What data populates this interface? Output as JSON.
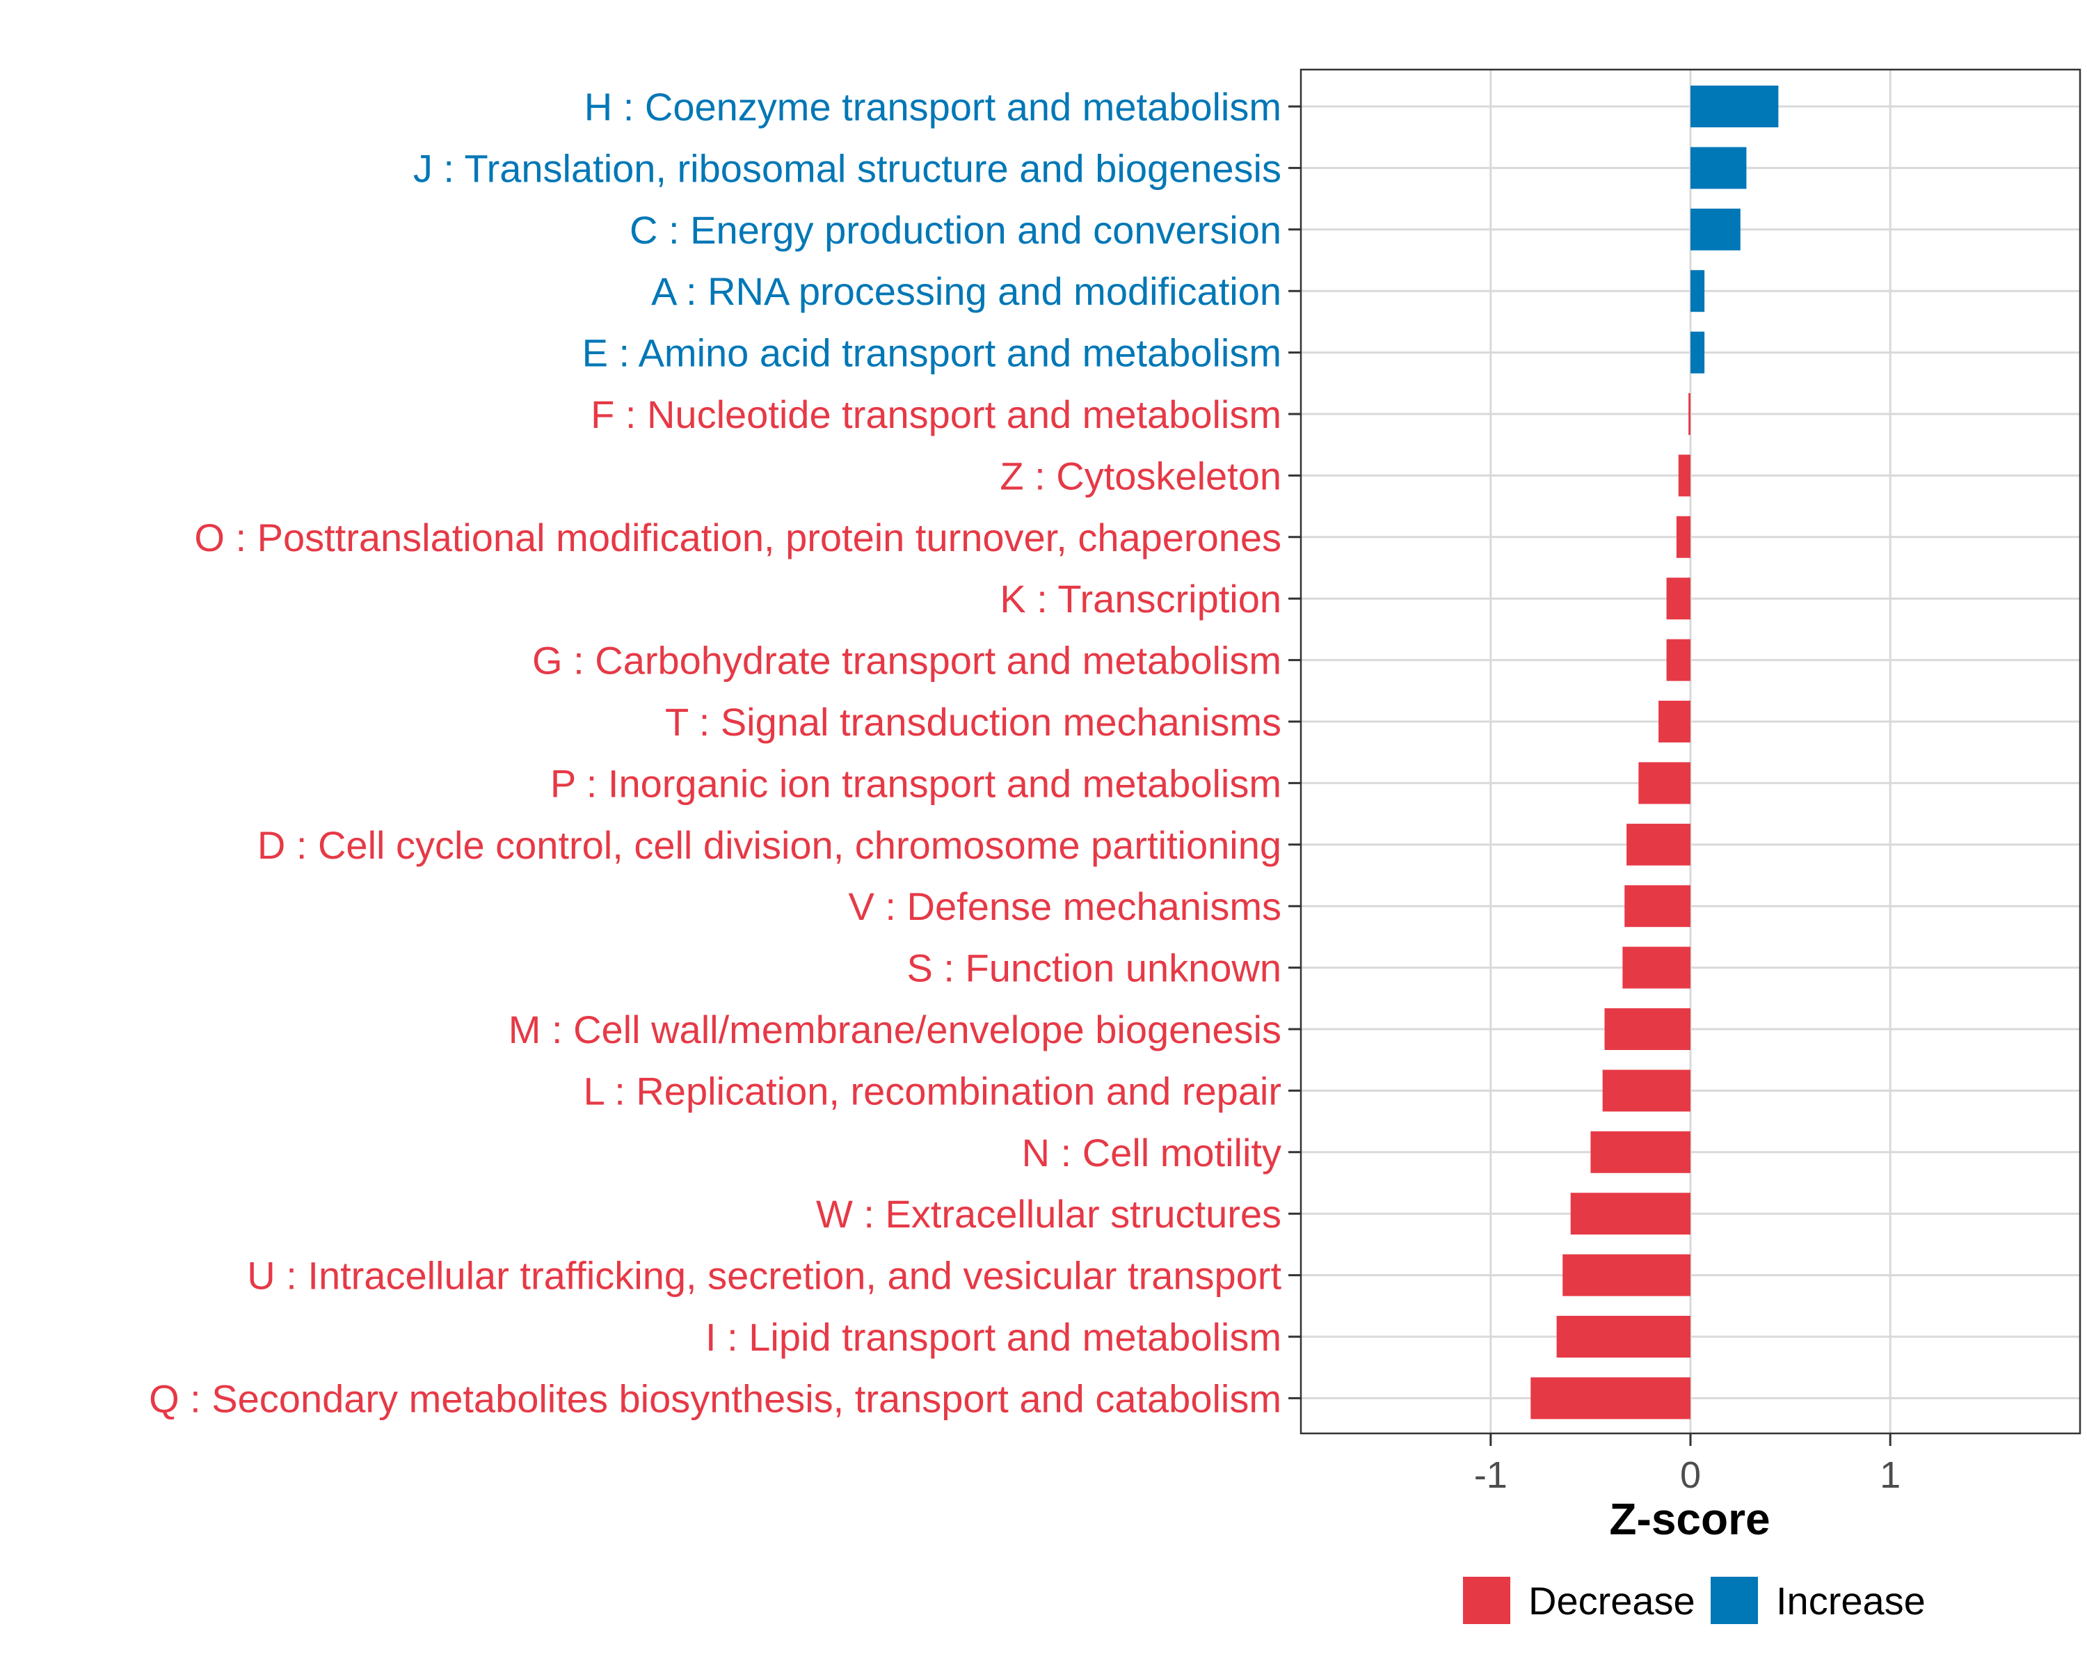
{
  "chart_data": {
    "type": "bar",
    "orientation": "horizontal",
    "title": "",
    "xlabel": "Z-score",
    "ylabel": "",
    "xlim": [
      -1.95,
      1.95
    ],
    "xticks": [
      -1,
      0,
      1
    ],
    "xtick_labels": [
      "-1",
      "0",
      "1"
    ],
    "grid": true,
    "colors": {
      "Decrease": "#E63946",
      "Increase": "#0077B6"
    },
    "categories": [
      "H : Coenzyme transport and metabolism",
      "J : Translation, ribosomal structure and biogenesis",
      "C : Energy production and conversion",
      "A : RNA processing and modification",
      "E : Amino acid transport and metabolism",
      "F : Nucleotide transport and metabolism",
      "Z : Cytoskeleton",
      "O : Posttranslational modification, protein turnover, chaperones",
      "K : Transcription",
      "G : Carbohydrate transport and metabolism",
      "T : Signal transduction mechanisms",
      "P : Inorganic ion transport and metabolism",
      "D : Cell cycle control, cell division, chromosome partitioning",
      "V : Defense mechanisms",
      "S : Function unknown",
      "M : Cell wall/membrane/envelope biogenesis",
      "L : Replication, recombination and repair",
      "N : Cell motility",
      "W : Extracellular structures",
      "U : Intracellular trafficking, secretion, and vesicular transport",
      "I : Lipid transport and metabolism",
      "Q : Secondary metabolites biosynthesis, transport and catabolism"
    ],
    "values": [
      0.44,
      0.28,
      0.25,
      0.07,
      0.07,
      -0.01,
      -0.06,
      -0.07,
      -0.12,
      -0.12,
      -0.16,
      -0.26,
      -0.32,
      -0.33,
      -0.34,
      -0.43,
      -0.44,
      -0.5,
      -0.6,
      -0.64,
      -0.67,
      -0.8
    ],
    "groups": [
      "Increase",
      "Increase",
      "Increase",
      "Increase",
      "Increase",
      "Decrease",
      "Decrease",
      "Decrease",
      "Decrease",
      "Decrease",
      "Decrease",
      "Decrease",
      "Decrease",
      "Decrease",
      "Decrease",
      "Decrease",
      "Decrease",
      "Decrease",
      "Decrease",
      "Decrease",
      "Decrease",
      "Decrease"
    ],
    "legend": {
      "position": "bottom",
      "entries": [
        {
          "label": "Decrease",
          "color": "#E63946"
        },
        {
          "label": "Increase",
          "color": "#0077B6"
        }
      ]
    }
  }
}
